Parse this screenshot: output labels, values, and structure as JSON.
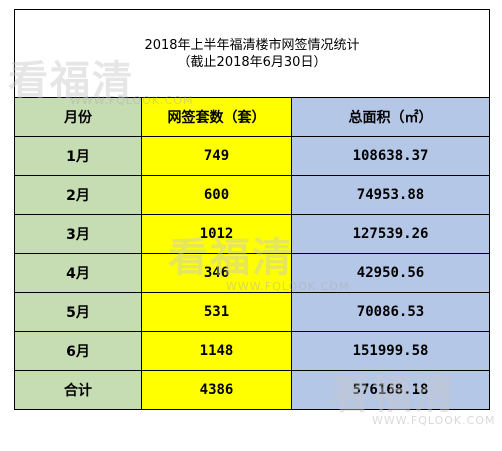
{
  "title": {
    "line1": "2018年上半年福清楼市网签情况统计",
    "line2": "（截止2018年6月30日）"
  },
  "headers": [
    "月份",
    "网签套数（套）",
    "总面积（㎡）"
  ],
  "rows": [
    {
      "month": "1月",
      "units": "749",
      "area": "108638.37"
    },
    {
      "month": "2月",
      "units": "600",
      "area": "74953.88"
    },
    {
      "month": "3月",
      "units": "1012",
      "area": "127539.26"
    },
    {
      "month": "4月",
      "units": "346",
      "area": "42950.56"
    },
    {
      "month": "5月",
      "units": "531",
      "area": "70086.53"
    },
    {
      "month": "6月",
      "units": "1148",
      "area": "151999.58"
    },
    {
      "month": "合计",
      "units": "4386",
      "area": "576168.18"
    }
  ],
  "watermark": {
    "brand": "看福清",
    "site": "WWW.FQLOOK.COM"
  },
  "colors": {
    "month_col": "#c6dcb3",
    "units_col": "#ffff00",
    "area_col": "#b4c7e7"
  }
}
